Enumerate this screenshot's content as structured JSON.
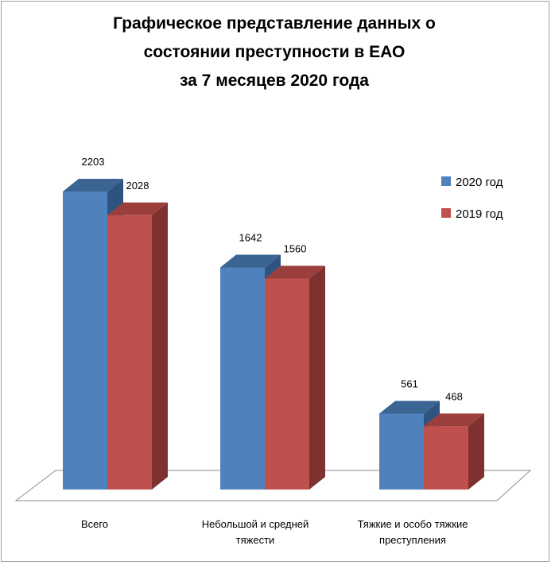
{
  "chart_data": {
    "type": "bar",
    "title": [
      "Графическое представление данных о",
      "состоянии преступности в ЕАО",
      "за 7 месяцев 2020 года"
    ],
    "categories": [
      [
        "Всего"
      ],
      [
        "Небольшой и средней",
        "тяжести"
      ],
      [
        "Тяжкие и особо тяжкие",
        "преступления"
      ]
    ],
    "series": [
      {
        "name": "2020 год",
        "values": [
          2203,
          1642,
          561
        ],
        "color": "#4F81BD",
        "top_color": "#3A6593",
        "side_color": "#2F5380"
      },
      {
        "name": "2019 год",
        "values": [
          2028,
          1560,
          468
        ],
        "color": "#C0504D",
        "top_color": "#9B3F3C",
        "side_color": "#7F3130"
      }
    ],
    "ylim": [
      0,
      2350
    ],
    "legend_position": "right",
    "grid": false,
    "style": "3d-clustered-column"
  }
}
